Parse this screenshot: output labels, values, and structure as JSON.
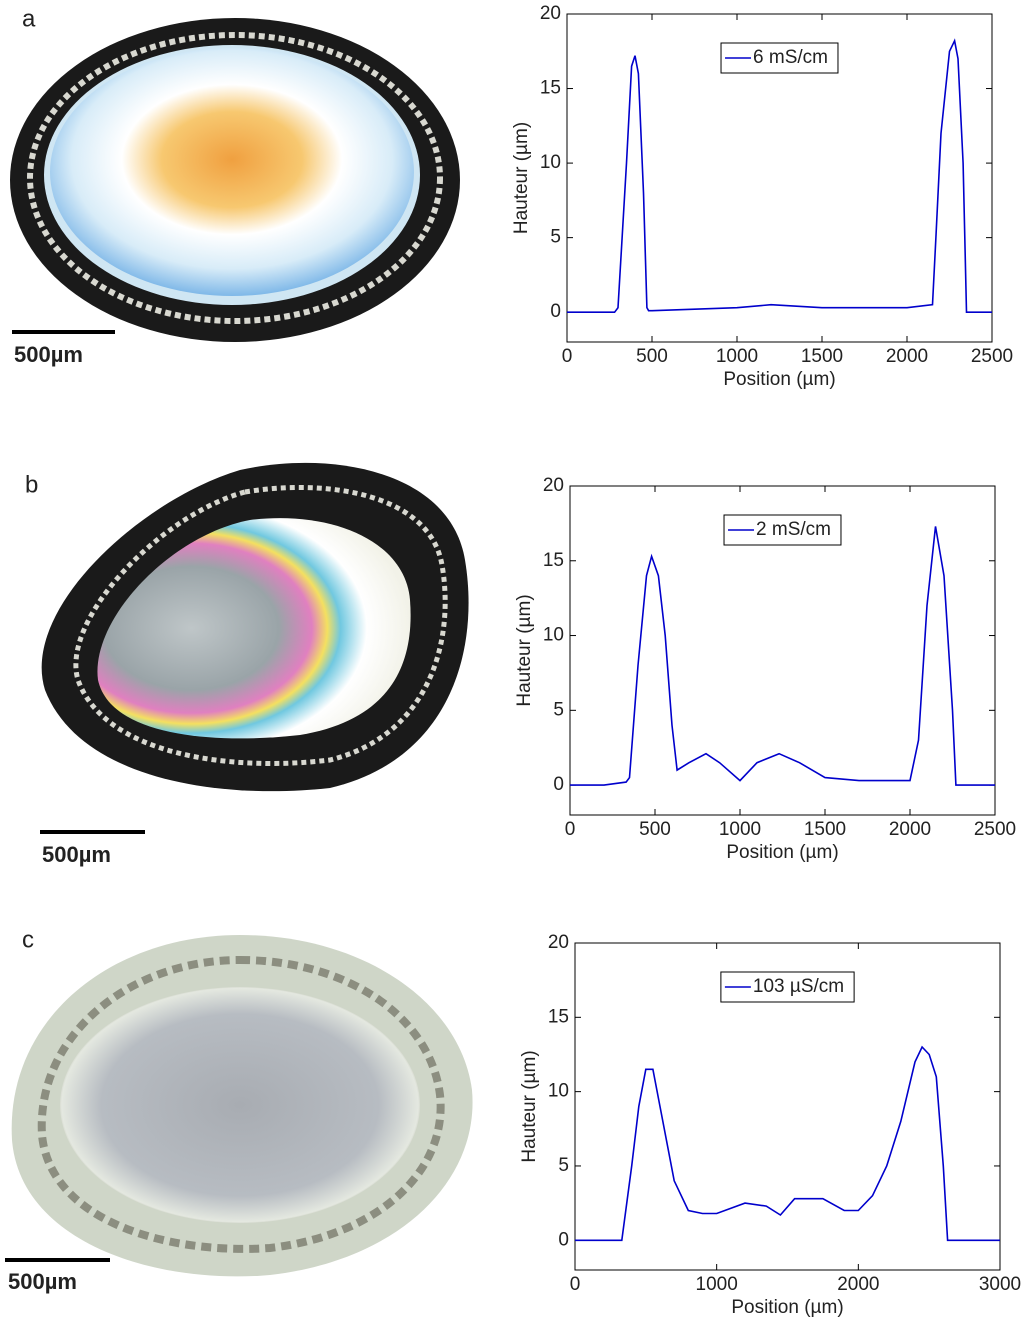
{
  "chart_data": [
    {
      "type": "line",
      "panel_label": "a",
      "scale_bar_label": "500µm",
      "x_label": "Position (µm)",
      "y_label": "Hauteur (µm)",
      "x": [
        0,
        280,
        300,
        350,
        380,
        400,
        420,
        450,
        470,
        480,
        500,
        1000,
        1200,
        1500,
        2000,
        2150,
        2170,
        2200,
        2250,
        2280,
        2300,
        2330,
        2350,
        2400,
        2500
      ],
      "series": [
        {
          "name": "6 mS/cm",
          "color": "#0000cc",
          "values": [
            0,
            0,
            0.3,
            10,
            16.5,
            17.2,
            16,
            8,
            0.3,
            0.1,
            0.1,
            0.3,
            0.5,
            0.3,
            0.3,
            0.5,
            5,
            12,
            17.5,
            18.2,
            17,
            10,
            0,
            0,
            0
          ]
        }
      ],
      "xlim": [
        0,
        2500
      ],
      "xticks": [
        0,
        500,
        1000,
        1500,
        2000,
        2500
      ],
      "ylim": [
        -2,
        20
      ],
      "yticks": [
        0,
        5,
        10,
        15,
        20
      ],
      "legend": "upper center"
    },
    {
      "type": "line",
      "panel_label": "b",
      "scale_bar_label": "500µm",
      "x_label": "Position (µm)",
      "y_label": "Hauteur (µm)",
      "x": [
        0,
        200,
        330,
        350,
        400,
        450,
        480,
        520,
        560,
        600,
        630,
        700,
        800,
        880,
        1000,
        1100,
        1230,
        1350,
        1500,
        1700,
        2000,
        2050,
        2100,
        2150,
        2200,
        2250,
        2270,
        2500
      ],
      "series": [
        {
          "name": "2 mS/cm",
          "color": "#0000cc",
          "values": [
            0,
            0,
            0.2,
            0.5,
            8,
            14,
            15.3,
            14,
            10,
            4,
            1,
            1.5,
            2.1,
            1.5,
            0.3,
            1.5,
            2.1,
            1.5,
            0.5,
            0.3,
            0.3,
            3,
            12,
            17.3,
            14,
            5,
            0,
            0
          ]
        }
      ],
      "xlim": [
        0,
        2500
      ],
      "xticks": [
        0,
        500,
        1000,
        1500,
        2000,
        2500
      ],
      "ylim": [
        -2,
        20
      ],
      "yticks": [
        0,
        5,
        10,
        15,
        20
      ],
      "legend": "upper center"
    },
    {
      "type": "line",
      "panel_label": "c",
      "scale_bar_label": "500µm",
      "x_label": "Position (µm)",
      "y_label": "Hauteur (µm)",
      "x": [
        0,
        330,
        400,
        450,
        500,
        550,
        600,
        700,
        800,
        900,
        1000,
        1200,
        1350,
        1450,
        1550,
        1750,
        1900,
        2000,
        2100,
        2200,
        2300,
        2400,
        2450,
        2500,
        2550,
        2600,
        2630,
        3000
      ],
      "series": [
        {
          "name": "103 µS/cm",
          "color": "#0000cc",
          "values": [
            0,
            0,
            5,
            9,
            11.5,
            11.5,
            9,
            4,
            2,
            1.8,
            1.8,
            2.5,
            2.3,
            1.7,
            2.8,
            2.8,
            2,
            2,
            3,
            5,
            8,
            12,
            13,
            12.5,
            11,
            5,
            0,
            0
          ]
        }
      ],
      "xlim": [
        0,
        3000
      ],
      "xticks": [
        0,
        1000,
        2000,
        3000
      ],
      "ylim": [
        -2,
        20
      ],
      "yticks": [
        0,
        5,
        10,
        15,
        20
      ],
      "legend": "upper center"
    }
  ]
}
